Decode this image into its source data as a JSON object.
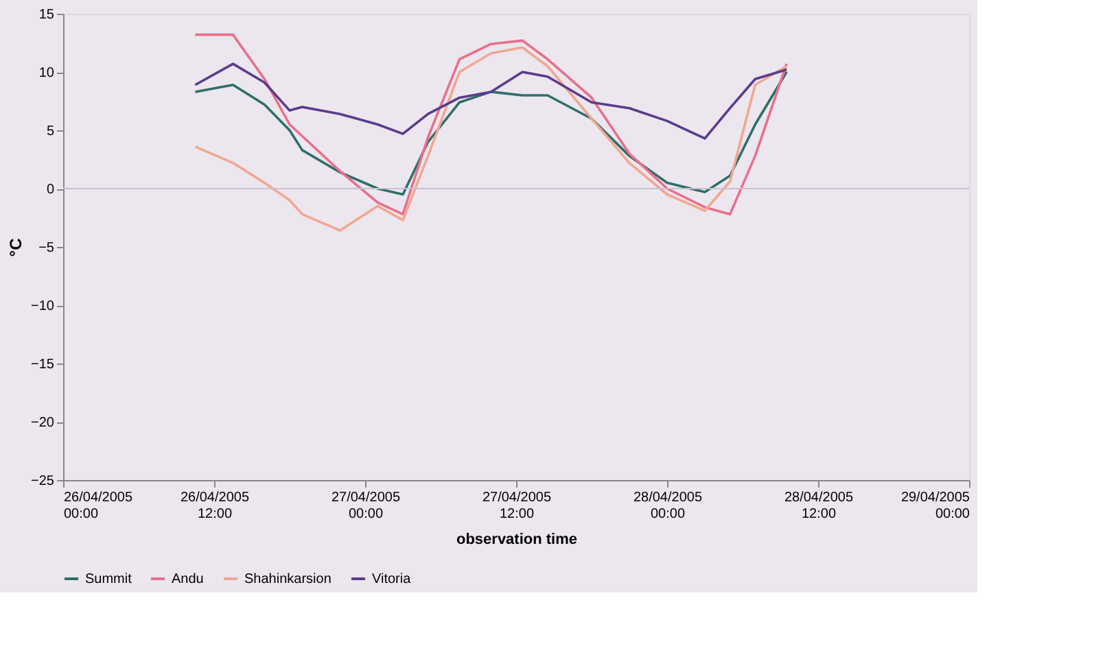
{
  "chart_data": {
    "type": "line",
    "xlabel": "observation time",
    "ylabel": "°C",
    "ylim": [
      -25,
      15
    ],
    "yticks": [
      -25,
      -20,
      -15,
      -10,
      -5,
      0,
      5,
      10,
      15
    ],
    "xlim": [
      "2005-04-26T00:00",
      "2005-04-29T00:00"
    ],
    "xticks": [
      {
        "value": "2005-04-26T00:00",
        "label": "26/04/2005 00:00"
      },
      {
        "value": "2005-04-26T12:00",
        "label": "26/04/2005 12:00"
      },
      {
        "value": "2005-04-27T00:00",
        "label": "27/04/2005 00:00"
      },
      {
        "value": "2005-04-27T12:00",
        "label": "27/04/2005 12:00"
      },
      {
        "value": "2005-04-28T00:00",
        "label": "28/04/2005 00:00"
      },
      {
        "value": "2005-04-28T12:00",
        "label": "28/04/2005 12:00"
      },
      {
        "value": "2005-04-29T00:00",
        "label": "29/04/2005 00:00"
      }
    ],
    "x": [
      "2005-04-26T10:30",
      "2005-04-26T13:30",
      "2005-04-26T16:00",
      "2005-04-26T18:00",
      "2005-04-26T19:00",
      "2005-04-26T22:00",
      "2005-04-27T01:00",
      "2005-04-27T03:00",
      "2005-04-27T05:00",
      "2005-04-27T07:30",
      "2005-04-27T10:00",
      "2005-04-27T12:30",
      "2005-04-27T14:30",
      "2005-04-27T18:00",
      "2005-04-27T21:00",
      "2005-04-28T00:00",
      "2005-04-28T03:00",
      "2005-04-28T05:00",
      "2005-04-28T07:00",
      "2005-04-28T09:30"
    ],
    "series": [
      {
        "name": "Summit",
        "color": "#2f6f6a",
        "values": [
          8.3,
          8.9,
          7.2,
          5.0,
          3.3,
          1.4,
          0,
          -0.5,
          4.0,
          7.4,
          8.3,
          8.0,
          8.0,
          6.0,
          2.8,
          0.5,
          -0.3,
          1.1,
          5.5,
          10.0
        ]
      },
      {
        "name": "Andu",
        "color": "#e8708a",
        "values": [
          13.2,
          13.2,
          9.4,
          5.5,
          4.5,
          1.5,
          -1.2,
          -2.2,
          4.4,
          11.1,
          12.4,
          12.7,
          11.1,
          7.8,
          3.0,
          0,
          -1.6,
          -2.2,
          2.8,
          10.7
        ]
      },
      {
        "name": "Shahinkarsion",
        "color": "#f0a890",
        "values": [
          3.6,
          2.2,
          0.5,
          -1.0,
          -2.2,
          -3.6,
          -1.5,
          -2.7,
          2.8,
          10.0,
          11.6,
          12.1,
          10.5,
          6.0,
          2.2,
          -0.5,
          -1.9,
          0.6,
          8.9,
          10.5
        ]
      },
      {
        "name": "Vitoria",
        "color": "#5a3c8c",
        "values": [
          8.9,
          10.7,
          9.1,
          6.7,
          7.0,
          6.4,
          5.5,
          4.7,
          6.4,
          7.8,
          8.3,
          10.0,
          9.6,
          7.4,
          6.9,
          5.8,
          4.3,
          6.9,
          9.4,
          10.2
        ]
      }
    ],
    "ref_lines": [
      {
        "axis": "y",
        "value": 0,
        "color": "#c8c0d0"
      }
    ],
    "legend": "bottom",
    "grid": false,
    "marker": "none",
    "line_style": "solid"
  }
}
